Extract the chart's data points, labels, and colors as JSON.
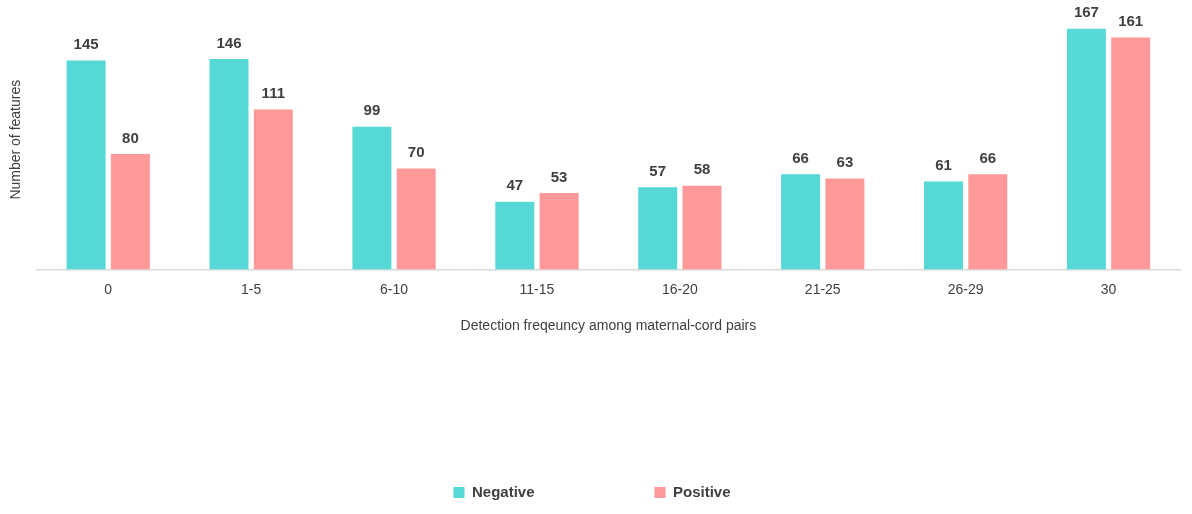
{
  "chart_data": {
    "type": "bar",
    "xlabel": "Detection freqeuncy among maternal-cord pairs",
    "ylabel": "Number of features",
    "categories": [
      "0",
      "1-5",
      "6-10",
      "11-15",
      "16-20",
      "21-25",
      "26-29",
      "30"
    ],
    "series": [
      {
        "name": "Negative",
        "color": "#56d8d6",
        "values": [
          145,
          146,
          99,
          47,
          57,
          66,
          61,
          167
        ]
      },
      {
        "name": "Positive",
        "color": "#ff9999",
        "values": [
          80,
          111,
          70,
          53,
          58,
          63,
          66,
          161
        ]
      }
    ],
    "data_labels": true,
    "legend": "bottom",
    "tick_labels": "x"
  }
}
